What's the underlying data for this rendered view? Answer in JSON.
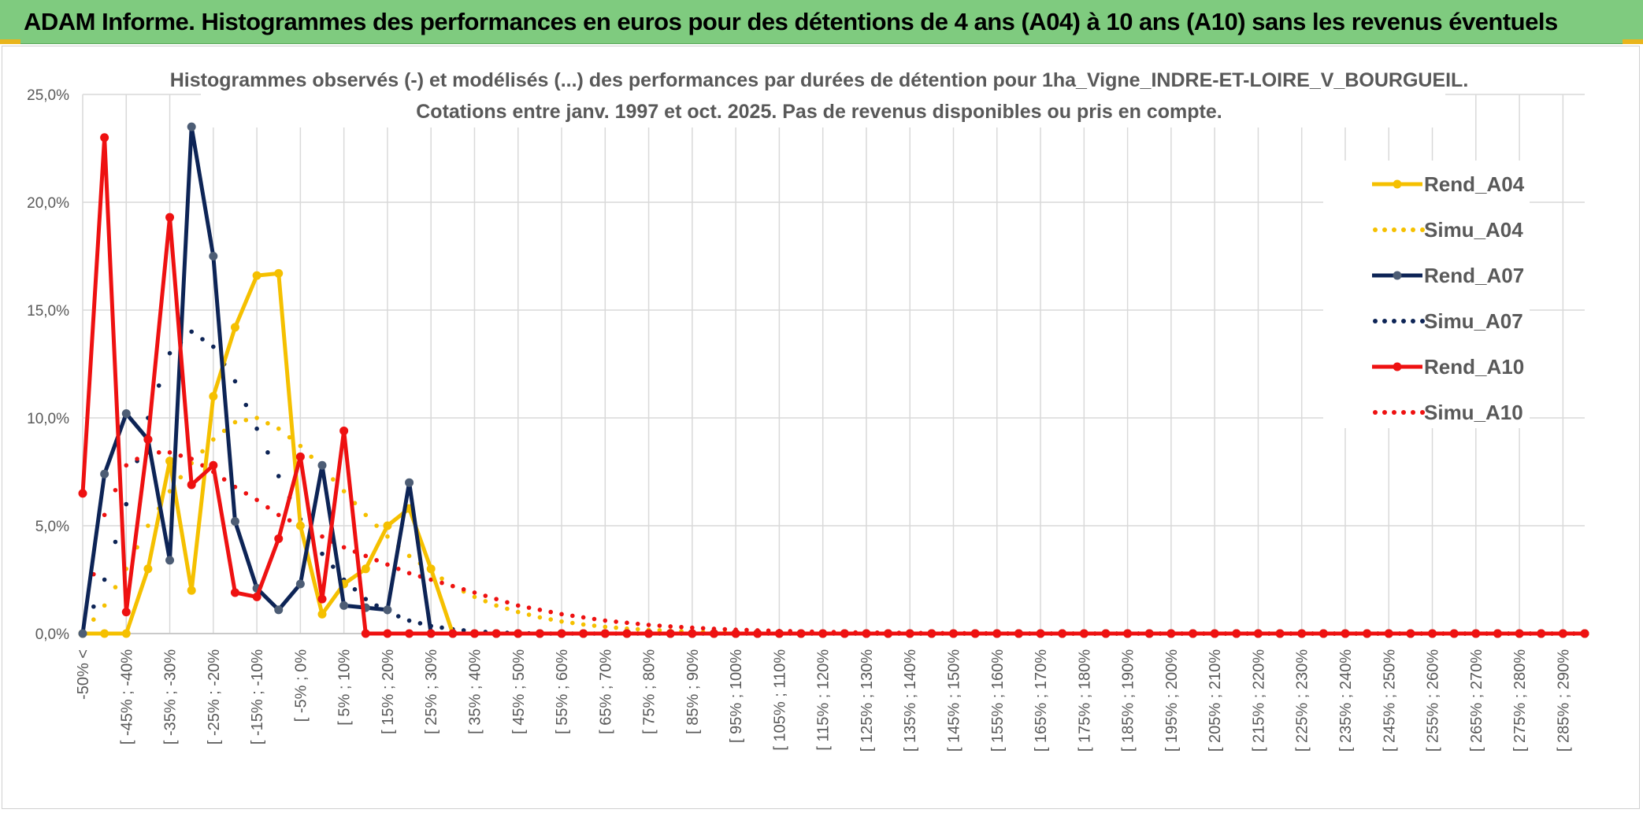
{
  "banner": {
    "title": "ADAM Informe. Histogrammes des performances en euros pour des détentions de 4 ans (A04) à 10 ans (A10) sans les revenus éventuels"
  },
  "colors": {
    "banner_bg": "#7fcb7f",
    "A04": "#f5c000",
    "A07": "#0d2456",
    "A10": "#ee1111",
    "marker_A07": "#4d5d75"
  },
  "chart_data": {
    "type": "line",
    "title_line1": "Histogrammes observés (-) et modélisés (...) des performances par durées de détention pour 1ha_Vigne_INDRE-ET-LOIRE_V_BOURGUEIL.",
    "title_line2": "Cotations entre janv. 1997 et oct. 2025. Pas de revenus disponibles ou pris en compte.",
    "y_ticks": [
      "0,0%",
      "5,0%",
      "10,0%",
      "15,0%",
      "20,0%",
      "25,0%"
    ],
    "ylim": [
      0,
      25
    ],
    "x_labels": [
      "-50% <",
      "[ -45% ; -40%",
      "[ -35% ; -30%",
      "[ -25% ; -20%",
      "[ -15% ; -10%",
      "[ -5% ; 0%",
      "[ 5% ; 10%",
      "[ 15% ; 20%",
      "[ 25% ; 30%",
      "[ 35% ; 40%",
      "[ 45% ; 50%",
      "[ 55% ; 60%",
      "[ 65% ; 70%",
      "[ 75% ; 80%",
      "[ 85% ; 90%",
      "[ 95% ; 100%",
      "[ 105% ; 110%",
      "[ 115% ; 120%",
      "[ 125% ; 130%",
      "[ 135% ; 140%",
      "[ 145% ; 150%",
      "[ 155% ; 160%",
      "[ 165% ; 170%",
      "[ 175% ; 180%",
      "[ 185% ; 190%",
      "[ 195% ; 200%",
      "[ 205% ; 210%",
      "[ 215% ; 220%",
      "[ 225% ; 230%",
      "[ 235% ; 240%",
      "[ 245% ; 250%",
      "[ 255% ; 260%",
      "[ 265% ; 270%",
      "[ 275% ; 280%",
      "[ 285% ; 290%"
    ],
    "n_points": 70,
    "legend": [
      "Rend_A04",
      "Simu_A04",
      "Rend_A07",
      "Simu_A07",
      "Rend_A10",
      "Simu_A10"
    ],
    "series": [
      {
        "name": "Rend_A04",
        "style": "solid",
        "values": [
          0,
          0,
          0,
          3,
          8,
          2,
          11,
          14.2,
          16.6,
          16.7,
          5,
          0.9,
          2.3,
          3,
          5,
          5.8,
          3,
          0,
          0,
          0,
          0,
          0,
          0,
          0,
          0,
          0,
          0,
          0,
          0,
          0,
          0,
          0,
          0,
          0,
          0,
          0,
          0,
          0,
          0,
          0,
          0,
          0,
          0,
          0,
          0,
          0,
          0,
          0,
          0,
          0,
          0,
          0,
          0,
          0,
          0,
          0,
          0,
          0,
          0,
          0,
          0,
          0,
          0,
          0,
          0,
          0,
          0,
          0,
          0,
          0
        ]
      },
      {
        "name": "Simu_A04",
        "style": "dotted",
        "values": [
          0,
          1.3,
          3,
          5,
          6.6,
          7.9,
          9,
          9.8,
          10,
          9.5,
          8.7,
          7.7,
          6.6,
          5.5,
          4.5,
          3.6,
          2.9,
          2.2,
          1.7,
          1.3,
          1,
          0.75,
          0.56,
          0.42,
          0.31,
          0.23,
          0.17,
          0.13,
          0.09,
          0.07,
          0.05,
          0.03,
          0.02,
          0.02,
          0.01,
          0.01,
          0,
          0,
          0,
          0,
          0,
          0,
          0,
          0,
          0,
          0,
          0,
          0,
          0,
          0,
          0,
          0,
          0,
          0,
          0,
          0,
          0,
          0,
          0,
          0,
          0,
          0,
          0,
          0,
          0,
          0,
          0,
          0,
          0,
          0
        ]
      },
      {
        "name": "Rend_A07",
        "style": "solid",
        "values": [
          0,
          7.4,
          10.2,
          9,
          3.4,
          23.5,
          17.5,
          5.2,
          2.1,
          1.1,
          2.3,
          7.8,
          1.3,
          1.2,
          1.1,
          7,
          0,
          0,
          0,
          0,
          0,
          0,
          0,
          0,
          0,
          0,
          0,
          0,
          0,
          0,
          0,
          0,
          0,
          0,
          0,
          0,
          0,
          0,
          0,
          0,
          0,
          0,
          0,
          0,
          0,
          0,
          0,
          0,
          0,
          0,
          0,
          0,
          0,
          0,
          0,
          0,
          0,
          0,
          0,
          0,
          0,
          0,
          0,
          0,
          0,
          0,
          0,
          0,
          0,
          0
        ]
      },
      {
        "name": "Simu_A07",
        "style": "dotted",
        "values": [
          0,
          2.5,
          6,
          10,
          13,
          14,
          13.3,
          11.7,
          9.5,
          7.3,
          5.3,
          3.7,
          2.5,
          1.6,
          1,
          0.6,
          0.35,
          0.2,
          0.1,
          0.05,
          0.02,
          0,
          0,
          0,
          0,
          0,
          0,
          0,
          0,
          0,
          0,
          0,
          0,
          0,
          0,
          0,
          0,
          0,
          0,
          0,
          0,
          0,
          0,
          0,
          0,
          0,
          0,
          0,
          0,
          0,
          0,
          0,
          0,
          0,
          0,
          0,
          0,
          0,
          0,
          0,
          0,
          0,
          0,
          0,
          0,
          0,
          0,
          0,
          0,
          0
        ]
      },
      {
        "name": "Rend_A10",
        "style": "solid",
        "values": [
          6.5,
          23,
          1,
          9,
          19.3,
          6.9,
          7.8,
          1.9,
          1.7,
          4.4,
          8.2,
          1.6,
          9.4,
          0,
          0,
          0,
          0,
          0,
          0,
          0,
          0,
          0,
          0,
          0,
          0,
          0,
          0,
          0,
          0,
          0,
          0,
          0,
          0,
          0,
          0,
          0,
          0,
          0,
          0,
          0,
          0,
          0,
          0,
          0,
          0,
          0,
          0,
          0,
          0,
          0,
          0,
          0,
          0,
          0,
          0,
          0,
          0,
          0,
          0,
          0,
          0,
          0,
          0,
          0,
          0,
          0,
          0,
          0,
          0,
          0
        ]
      },
      {
        "name": "Simu_A10",
        "style": "dotted",
        "values": [
          0,
          5.5,
          7.8,
          8.4,
          8.4,
          8.1,
          7.5,
          6.8,
          6.2,
          5.5,
          5,
          4.5,
          4,
          3.6,
          3.2,
          2.8,
          2.5,
          2.2,
          1.9,
          1.6,
          1.3,
          1.1,
          0.9,
          0.75,
          0.6,
          0.5,
          0.4,
          0.33,
          0.27,
          0.22,
          0.18,
          0.15,
          0.12,
          0.1,
          0.08,
          0.06,
          0.05,
          0.04,
          0.03,
          0.02,
          0.02,
          0.01,
          0.01,
          0,
          0,
          0,
          0,
          0,
          0,
          0,
          0,
          0,
          0,
          0,
          0,
          0,
          0,
          0,
          0,
          0,
          0,
          0,
          0,
          0,
          0,
          0,
          0,
          0,
          0,
          0
        ]
      }
    ]
  }
}
